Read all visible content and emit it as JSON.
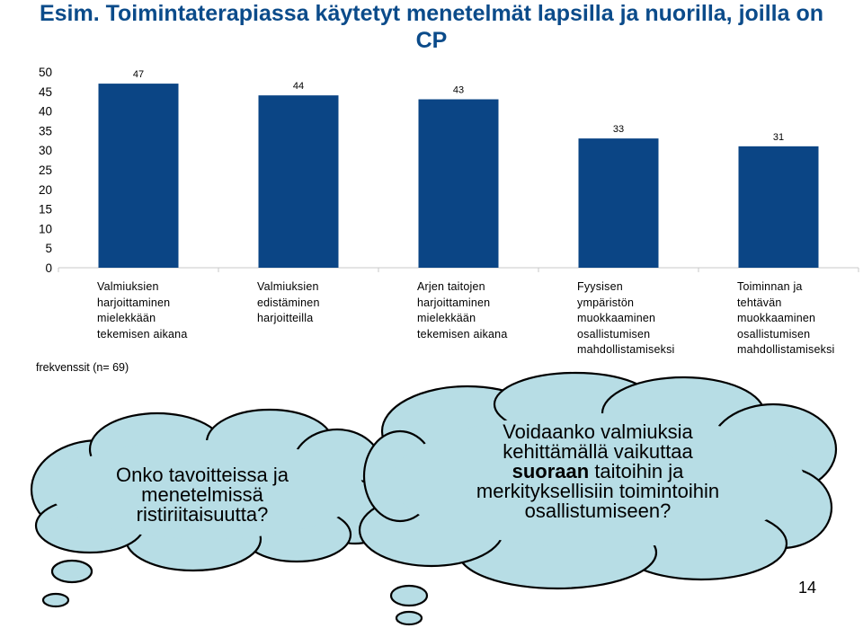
{
  "title": "Esim. Toimintaterapiassa käytetyt menetelmät lapsilla ja nuorilla, joilla on CP",
  "footnote": "frekvenssit (n= 69)",
  "chart_data": {
    "type": "bar",
    "categories": [
      [
        "Valmiuksien",
        "harjoittaminen",
        "mielekkään",
        "tekemisen aikana"
      ],
      [
        "Valmiuksien",
        "edistäminen",
        "harjoitteilla"
      ],
      [
        "Arjen taitojen",
        "harjoittaminen",
        "mielekkään",
        "tekemisen aikana"
      ],
      [
        "Fyysisen",
        "ympäristön",
        "muokkaaminen",
        "osallistumisen",
        "mahdollistamiseksi"
      ],
      [
        "Toiminnan ja",
        "tehtävän",
        "muokkaaminen",
        "osallistumisen",
        "mahdollistamiseksi"
      ]
    ],
    "values": [
      47,
      44,
      43,
      33,
      31
    ],
    "data_labels": [
      "47",
      "44",
      "43",
      "33",
      "31"
    ],
    "ylim": [
      0,
      50
    ],
    "yticks": [
      0,
      5,
      10,
      15,
      20,
      25,
      30,
      35,
      40,
      45,
      50
    ],
    "bar_color": "#0b4585",
    "grid": false
  },
  "cloud_left": {
    "lines": [
      "Onko tavoitteissa ja",
      "menetelmissä",
      "ristiriitaisuutta?"
    ]
  },
  "cloud_right": {
    "lines": [
      [
        "Voidaanko valmiuksia"
      ],
      [
        "kehittämällä vaikuttaa"
      ],
      [
        "suoraan",
        " taitoihin ja"
      ],
      [
        "merkityksellisiin toimintoihin"
      ],
      [
        "osallistumiseen?"
      ]
    ]
  },
  "cloud_fill": "#b7dde5",
  "page_number": "14"
}
